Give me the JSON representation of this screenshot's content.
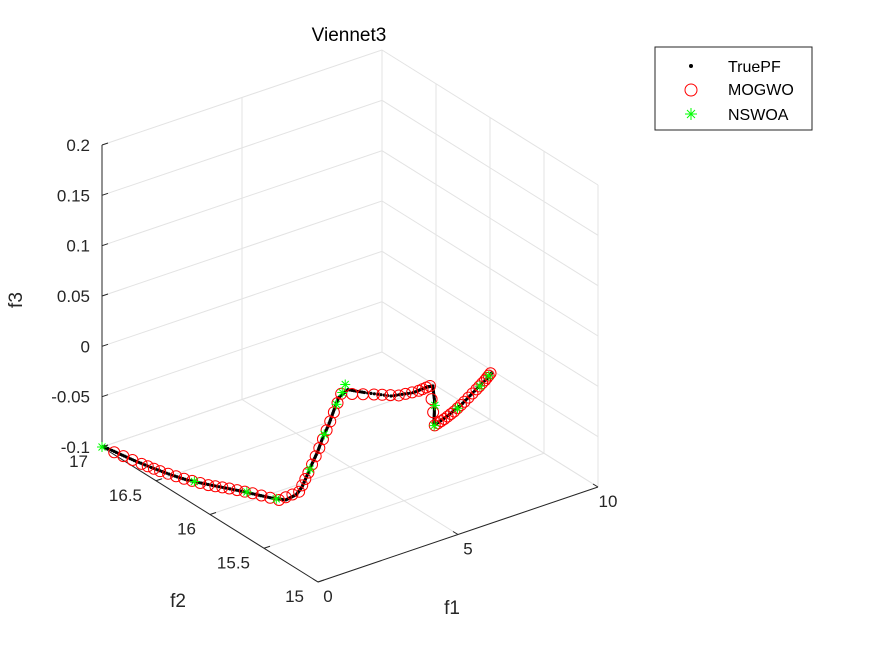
{
  "chart_data": {
    "type": "scatter",
    "view": "3d",
    "title": "Viennet3",
    "xlabel": "f1",
    "ylabel": "f2",
    "zlabel": "f3",
    "xlim": [
      0,
      10
    ],
    "ylim": [
      15,
      17
    ],
    "zlim": [
      -0.1,
      0.2
    ],
    "xticks": [
      "0",
      "5",
      "10"
    ],
    "yticks": [
      "15",
      "15.5",
      "16",
      "16.5",
      "17"
    ],
    "zticks": [
      "-0.1",
      "-0.05",
      "0",
      "0.05",
      "0.1",
      "0.15",
      "0.2"
    ],
    "grid": true,
    "legend_location": "top-right",
    "series": [
      {
        "name": "TruePF",
        "marker": "point",
        "color": "#000000",
        "points": [
          [
            0.02,
            16.99,
            -0.099
          ],
          [
            0.08,
            16.85,
            -0.098
          ],
          [
            0.15,
            16.72,
            -0.097
          ],
          [
            0.25,
            16.59,
            -0.096
          ],
          [
            0.38,
            16.46,
            -0.095
          ],
          [
            0.52,
            16.35,
            -0.094
          ],
          [
            0.7,
            16.24,
            -0.092
          ],
          [
            0.9,
            16.13,
            -0.09
          ],
          [
            1.1,
            16.02,
            -0.088
          ],
          [
            1.3,
            15.9,
            -0.086
          ],
          [
            1.45,
            15.8,
            -0.084
          ],
          [
            1.55,
            15.7,
            -0.08
          ],
          [
            1.62,
            15.62,
            -0.07
          ],
          [
            1.67,
            15.58,
            -0.06
          ],
          [
            1.72,
            15.55,
            -0.048
          ],
          [
            1.78,
            15.52,
            -0.035
          ],
          [
            1.84,
            15.48,
            -0.02
          ],
          [
            1.9,
            15.45,
            -0.005
          ],
          [
            1.96,
            15.41,
            0.01
          ],
          [
            2.02,
            15.38,
            0.025
          ],
          [
            2.08,
            15.35,
            0.04
          ],
          [
            2.15,
            15.28,
            0.052
          ],
          [
            2.35,
            15.18,
            0.054
          ],
          [
            2.8,
            15.05,
            0.055
          ],
          [
            3.4,
            15.0,
            0.056
          ],
          [
            3.9,
            15.0,
            0.057
          ],
          [
            4.1,
            15.0,
            0.056
          ],
          [
            4.2,
            15.01,
            0.04
          ],
          [
            4.27,
            15.03,
            0.025
          ],
          [
            4.33,
            15.05,
            0.012
          ],
          [
            4.5,
            15.07,
            0.01
          ],
          [
            5.1,
            15.12,
            0.009
          ],
          [
            5.8,
            15.18,
            0.009
          ],
          [
            6.5,
            15.25,
            0.01
          ],
          [
            7.3,
            15.33,
            0.011
          ],
          [
            7.6,
            15.36,
            0.012
          ]
        ]
      },
      {
        "name": "MOGWO",
        "marker": "circle",
        "color": "#ff0000",
        "points": [
          [
            0.05,
            16.9,
            -0.099
          ],
          [
            0.18,
            16.68,
            -0.097
          ],
          [
            0.3,
            16.54,
            -0.096
          ],
          [
            0.5,
            16.37,
            -0.094
          ],
          [
            0.75,
            16.21,
            -0.092
          ],
          [
            1.0,
            16.08,
            -0.089
          ],
          [
            1.25,
            15.93,
            -0.086
          ],
          [
            1.5,
            15.75,
            -0.083
          ],
          [
            1.64,
            15.6,
            -0.066
          ],
          [
            1.74,
            15.54,
            -0.044
          ],
          [
            1.86,
            15.47,
            -0.016
          ],
          [
            1.98,
            15.4,
            0.014
          ],
          [
            2.1,
            15.33,
            0.045
          ],
          [
            2.5,
            15.13,
            0.054
          ],
          [
            3.0,
            15.03,
            0.055
          ],
          [
            3.6,
            15.0,
            0.056
          ],
          [
            4.0,
            15.0,
            0.057
          ],
          [
            4.4,
            15.06,
            0.01
          ],
          [
            4.9,
            15.1,
            0.009
          ],
          [
            5.4,
            15.14,
            0.009
          ],
          [
            6.0,
            15.2,
            0.009
          ],
          [
            6.7,
            15.27,
            0.01
          ],
          [
            7.2,
            15.32,
            0.011
          ],
          [
            7.55,
            15.36,
            0.012
          ]
        ]
      },
      {
        "name": "NSWOA",
        "marker": "asterisk",
        "color": "#00ff00",
        "points": [
          [
            0.0,
            17.0,
            -0.1
          ],
          [
            0.6,
            16.3,
            -0.093
          ],
          [
            1.2,
            15.97,
            -0.087
          ],
          [
            1.48,
            15.77,
            -0.083
          ],
          [
            1.76,
            15.53,
            -0.04
          ],
          [
            1.92,
            15.44,
            -0.001
          ],
          [
            2.05,
            15.36,
            0.033
          ],
          [
            2.1,
            15.32,
            0.047
          ],
          [
            2.13,
            15.3,
            0.056
          ],
          [
            4.25,
            15.02,
            0.034
          ],
          [
            4.38,
            15.06,
            0.01
          ],
          [
            5.6,
            15.16,
            0.009
          ],
          [
            6.9,
            15.29,
            0.01
          ],
          [
            7.45,
            15.35,
            0.011
          ]
        ]
      }
    ]
  }
}
